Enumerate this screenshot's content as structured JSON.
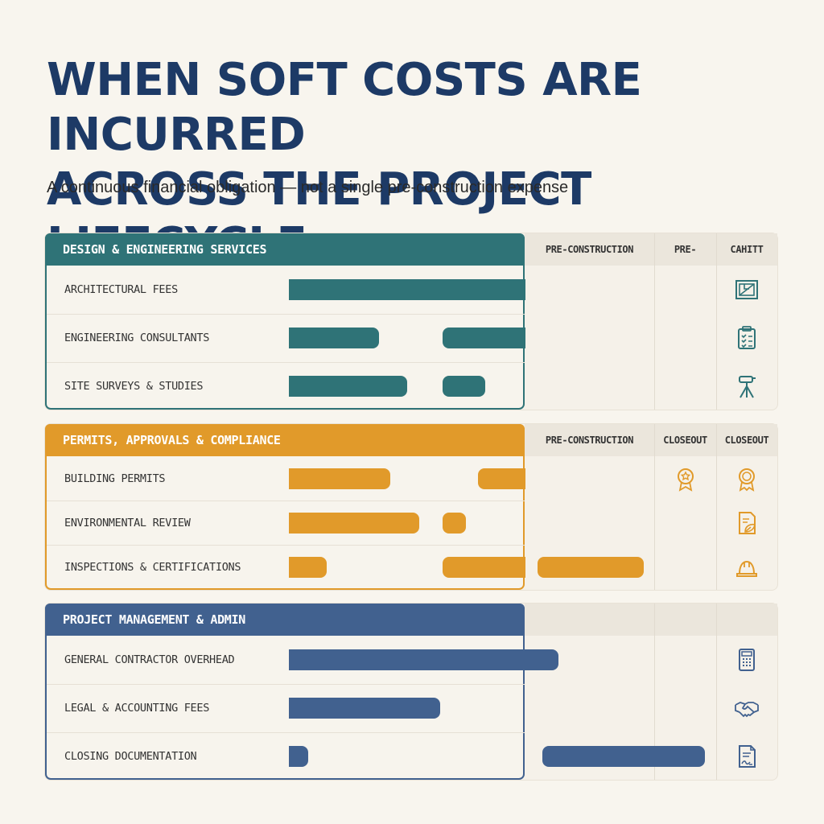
{
  "title": {
    "line1": "WHEN SOFT COSTS ARE INCURRED",
    "line2": "ACROSS THE PROJECT LIFECYCLE"
  },
  "subtitle": "A continuous financial obligation — not a single pre-construction expense",
  "colors": {
    "teal": "#2f7377",
    "orange": "#e19a2a",
    "blue": "#41618f",
    "title": "#1d3a66"
  },
  "chart_data": {
    "type": "gantt",
    "sections": [
      {
        "title": "DESIGN & ENGINEERING SERVICES",
        "color": "#2f7377",
        "column_headers": [
          "PRE-CONSTRUCTION",
          "PRE-",
          "CAHITT"
        ],
        "rows": [
          {
            "label": "ARCHITECTURAL FEES",
            "icon": "blueprint-icon",
            "bars": [
              [
                0,
                1.0
              ]
            ]
          },
          {
            "label": "ENGINEERING CONSULTANTS",
            "icon": "clipboard-checklist-icon",
            "bars": [
              [
                0,
                0.38
              ],
              [
                0.65,
                1.0
              ]
            ]
          },
          {
            "label": "SITE SURVEYS & STUDIES",
            "icon": "survey-tripod-icon",
            "bars": [
              [
                0,
                0.5
              ],
              [
                0.65,
                0.83
              ]
            ]
          }
        ]
      },
      {
        "title": "PERMITS, APPROVALS & COMPLIANCE",
        "color": "#e19a2a",
        "column_headers": [
          "PRE-CONSTRUCTION",
          "CLOSEOUT",
          "CLOSEOUT"
        ],
        "rows": [
          {
            "label": "BUILDING PERMITS",
            "icon": "approval-stamp-icon",
            "bars": [
              [
                0,
                0.43
              ],
              [
                0.8,
                1.0
              ]
            ]
          },
          {
            "label": "ENVIRONMENTAL REVIEW",
            "icon": "leaf-document-icon",
            "bars": [
              [
                0,
                0.55
              ],
              [
                0.65,
                0.75
              ]
            ]
          },
          {
            "label": "INSPECTIONS & CERTIFICATIONS",
            "icon": "hard-hat-icon",
            "bars": [
              [
                0,
                0.16
              ],
              [
                0.65,
                1.0
              ],
              [
                1.05,
                1.5
              ]
            ]
          }
        ]
      },
      {
        "title": "PROJECT MANAGEMENT & ADMIN",
        "color": "#41618f",
        "column_headers": [
          "",
          "",
          ""
        ],
        "rows": [
          {
            "label": "GENERAL CONTRACTOR OVERHEAD",
            "icon": "calculator-icon",
            "bars": [
              [
                0,
                1.14
              ]
            ]
          },
          {
            "label": "LEGAL & ACCOUNTING FEES",
            "icon": "handshake-icon",
            "bars": [
              [
                0,
                0.64
              ]
            ]
          },
          {
            "label": "CLOSING DOCUMENTATION",
            "icon": "signed-document-icon",
            "bars": [
              [
                0,
                0.08
              ],
              [
                1.07,
                1.76
              ]
            ]
          }
        ]
      }
    ]
  }
}
